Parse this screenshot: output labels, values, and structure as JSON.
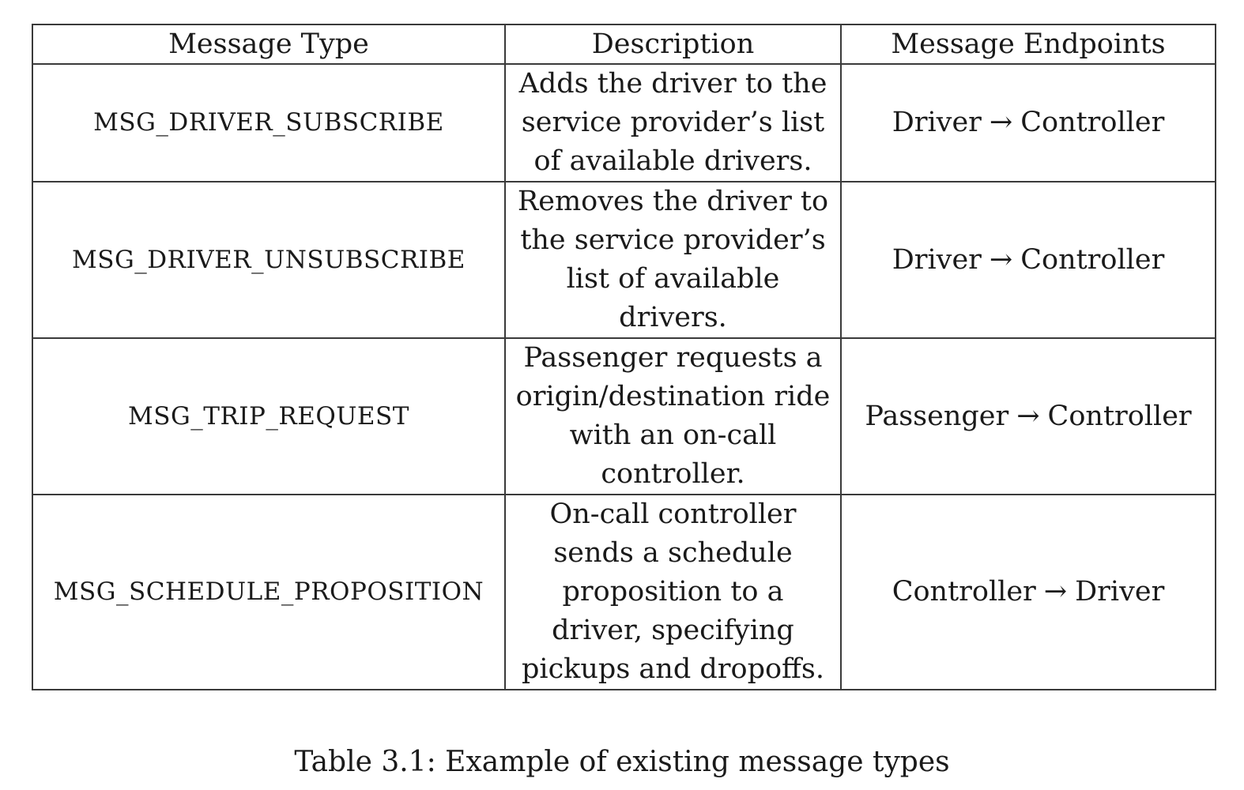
{
  "table": {
    "headers": [
      "Message Type",
      "Description",
      "Message Endpoints"
    ],
    "rows": [
      {
        "type": "MSG_DRIVER_SUBSCRIBE",
        "description": "Adds the driver to the service provider’s list of available drivers.",
        "from": "Driver",
        "arrow": "→",
        "to": "Controller"
      },
      {
        "type": "MSG_DRIVER_UNSUBSCRIBE",
        "description": "Removes the driver to the service provider’s list of available drivers.",
        "from": "Driver",
        "arrow": "→",
        "to": "Controller"
      },
      {
        "type": "MSG_TRIP_REQUEST",
        "description": "Passenger requests a origin/destination ride with an on-call controller.",
        "from": "Passenger",
        "arrow": "→",
        "to": "Controller"
      },
      {
        "type": "MSG_SCHEDULE_PROPOSITION",
        "description": "On-call controller sends a schedule proposition to a driver, specifying pickups and dropoffs.",
        "from": "Controller",
        "arrow": "→",
        "to": "Driver"
      }
    ]
  },
  "caption": "Table 3.1: Example of existing message types"
}
